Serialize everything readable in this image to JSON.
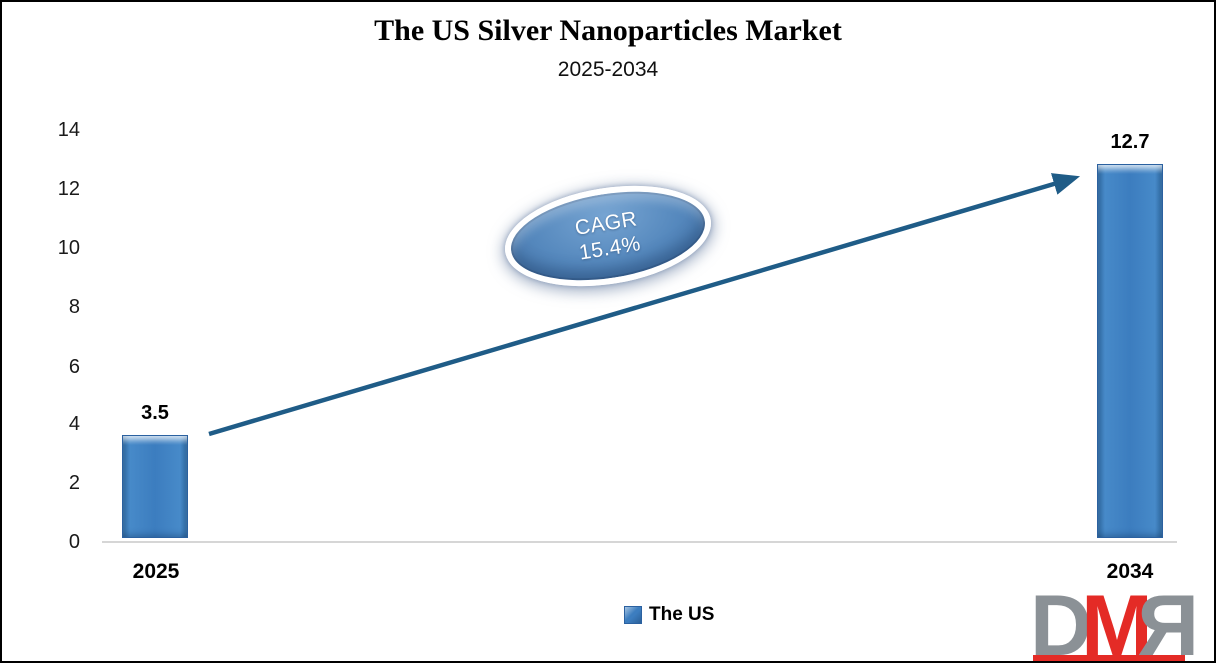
{
  "header": {
    "title": "The US Silver Nanoparticles Market",
    "subtitle": "2025-2034"
  },
  "chart_data": {
    "type": "bar",
    "title": "The US Silver Nanoparticles Market",
    "subtitle": "2025-2034",
    "categories": [
      "2025",
      "2034"
    ],
    "series": [
      {
        "name": "The US",
        "values": [
          3.5,
          12.7
        ]
      }
    ],
    "data_labels": [
      "3.5",
      "12.7"
    ],
    "ylim": [
      0,
      14
    ],
    "ytick_step": 2,
    "grid": false,
    "legend_position": "bottom",
    "annotation": "CAGR 15.4%",
    "bar_color": "#3c7dbf",
    "arrow_color": "#1f5c87",
    "axis_line_color": "#d6d6d6"
  },
  "axis": {
    "yticks_display": [
      "14",
      "12",
      "10",
      "8",
      "6",
      "4",
      "2",
      "0"
    ]
  },
  "badge": {
    "line1": "CAGR",
    "line2": "15.4%"
  },
  "legend": {
    "label": "The US"
  },
  "logo": {
    "letters": [
      "D",
      "M",
      "R"
    ],
    "gray": "#8b9196",
    "red": "#e42b26"
  }
}
